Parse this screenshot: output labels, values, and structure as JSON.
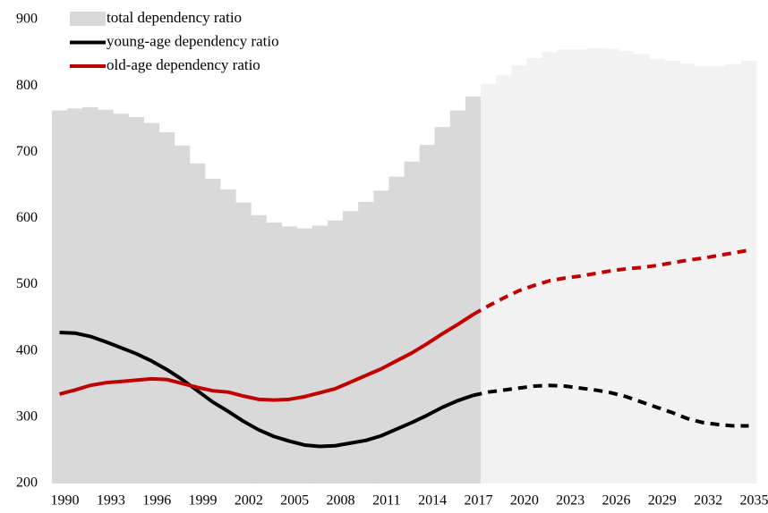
{
  "chart_data": {
    "type": "bar-line",
    "x": [
      1990,
      1991,
      1992,
      1993,
      1994,
      1995,
      1996,
      1997,
      1998,
      1999,
      2000,
      2001,
      2002,
      2003,
      2004,
      2005,
      2006,
      2007,
      2008,
      2009,
      2010,
      2011,
      2012,
      2013,
      2014,
      2015,
      2016,
      2017,
      2018,
      2019,
      2020,
      2021,
      2022,
      2023,
      2024,
      2025,
      2026,
      2027,
      2028,
      2029,
      2030,
      2031,
      2032,
      2033,
      2034,
      2035
    ],
    "xlim": [
      1989.5,
      2035.5
    ],
    "xticks": [
      1990,
      1993,
      1996,
      1999,
      2002,
      2005,
      2008,
      2011,
      2014,
      2017,
      2020,
      2023,
      2026,
      2029,
      2032,
      2035
    ],
    "ylim": [
      200,
      900
    ],
    "yticks": [
      200,
      300,
      400,
      500,
      600,
      700,
      800,
      900
    ],
    "forecast_start": 2017,
    "series": [
      {
        "name": "total dependency ratio",
        "kind": "bar",
        "color": "#d9d9d9",
        "forecast_color": "#f2f2f2",
        "values": [
          763,
          766,
          768,
          764,
          758,
          753,
          744,
          730,
          710,
          683,
          660,
          644,
          624,
          605,
          594,
          588,
          585,
          589,
          597,
          611,
          625,
          642,
          663,
          686,
          711,
          738,
          763,
          784,
          803,
          816,
          831,
          842,
          851,
          855,
          855,
          857,
          856,
          853,
          848,
          841,
          838,
          834,
          830,
          830,
          833,
          838
        ]
      },
      {
        "name": "young-age dependency ratio",
        "kind": "line",
        "color": "#000000",
        "values": [
          428,
          427,
          422,
          414,
          405,
          396,
          385,
          372,
          357,
          340,
          323,
          309,
          294,
          281,
          271,
          264,
          258,
          256,
          257,
          261,
          265,
          272,
          282,
          292,
          303,
          315,
          325,
          333,
          338,
          341,
          344,
          347,
          348,
          347,
          344,
          341,
          337,
          331,
          323,
          315,
          307,
          298,
          292,
          289,
          287,
          287
        ]
      },
      {
        "name": "old-age dependency ratio",
        "kind": "line",
        "color": "#c00000",
        "values": [
          335,
          341,
          348,
          352,
          354,
          356,
          358,
          357,
          351,
          345,
          340,
          338,
          332,
          327,
          326,
          327,
          331,
          337,
          343,
          353,
          363,
          373,
          385,
          397,
          411,
          426,
          440,
          455,
          468,
          480,
          491,
          499,
          506,
          510,
          513,
          517,
          521,
          524,
          526,
          529,
          533,
          537,
          540,
          544,
          548,
          552
        ]
      }
    ]
  }
}
